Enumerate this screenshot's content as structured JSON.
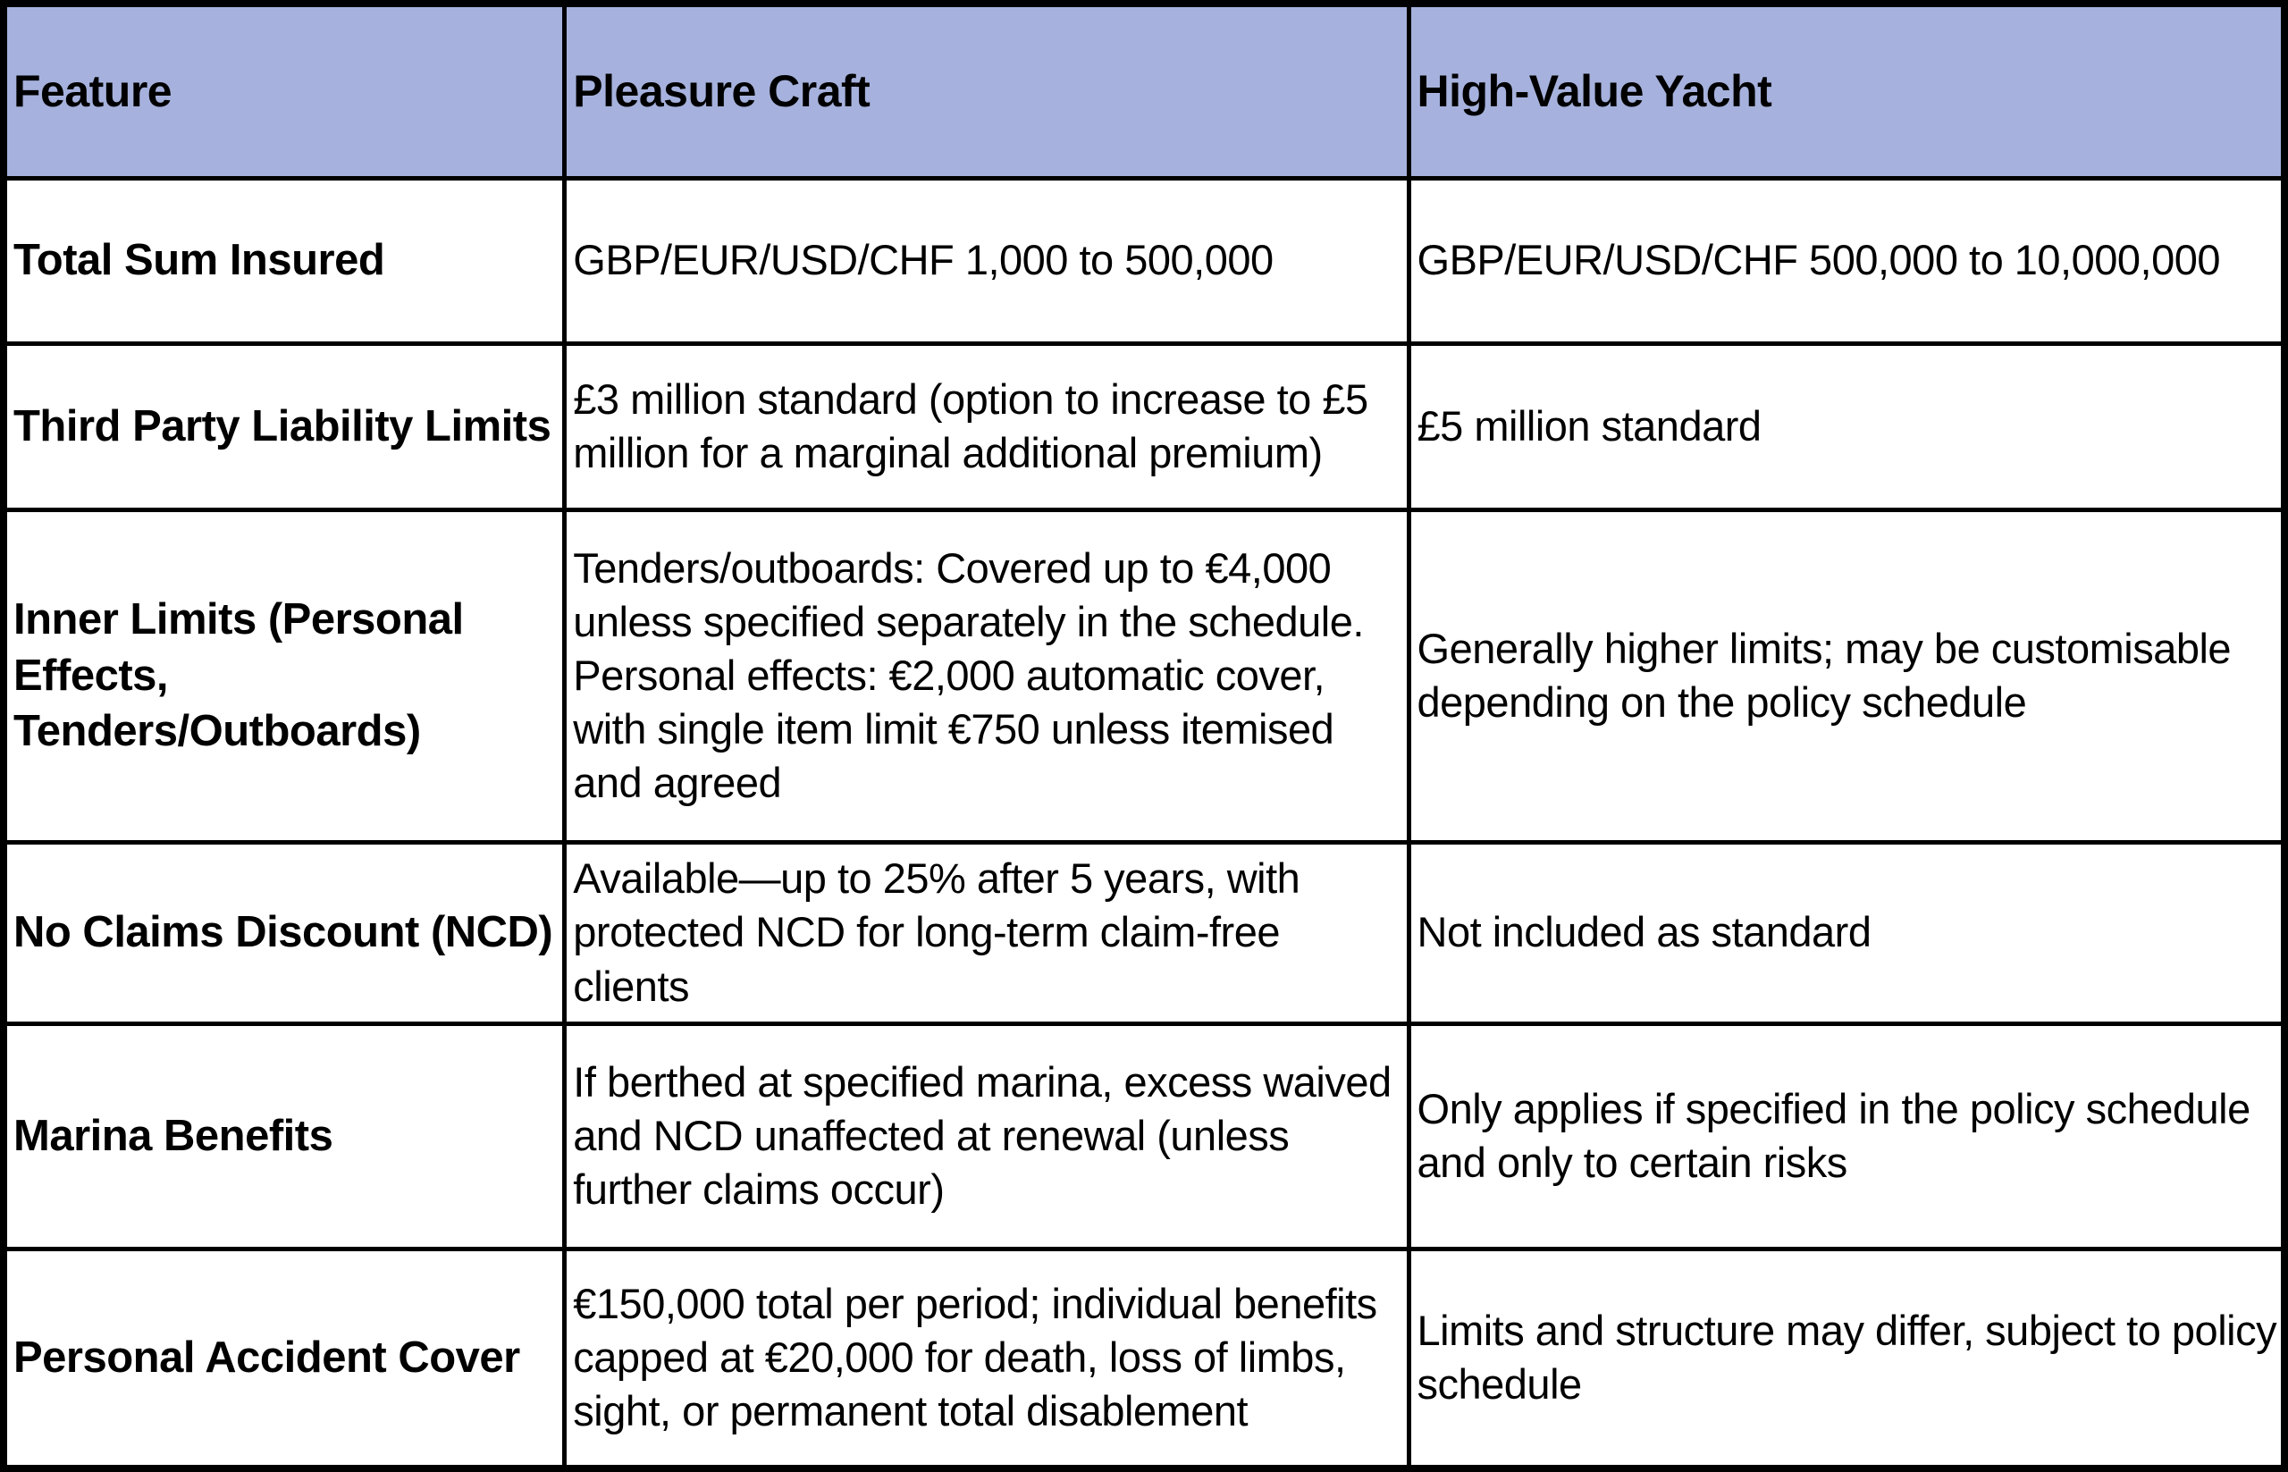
{
  "table": {
    "columns": [
      "Feature",
      "Pleasure Craft",
      "High-Value Yacht"
    ],
    "rows": [
      {
        "feature": "Total Sum Insured",
        "pleasure_craft": "GBP/EUR/USD/CHF 1,000 to 500,000",
        "high_value_yacht": "GBP/EUR/USD/CHF 500,000 to 10,000,000"
      },
      {
        "feature": "Third Party Liability Limits",
        "pleasure_craft": "£3 million standard (option to increase to £5 million for a marginal additional premium)",
        "high_value_yacht": "£5 million standard"
      },
      {
        "feature": "Inner Limits (Personal Effects, Tenders/Outboards)",
        "pleasure_craft": "Tenders/outboards: Covered up to €4,000 unless specified separately in the schedule. Personal effects: €2,000 automatic cover, with single item limit €750 unless itemised and agreed",
        "high_value_yacht": "Generally higher limits; may be customisable depending on the policy schedule"
      },
      {
        "feature": "No Claims Discount (NCD)",
        "pleasure_craft": "Available—up to 25% after 5 years, with protected NCD for long-term claim-free clients",
        "high_value_yacht": "Not included as standard"
      },
      {
        "feature": "Marina Benefits",
        "pleasure_craft": "If berthed at specified marina, excess waived and NCD unaffected at renewal (unless further claims occur)",
        "high_value_yacht": "Only applies if specified in the policy schedule and only to certain risks"
      },
      {
        "feature": "Personal Accident Cover",
        "pleasure_craft": "€150,000 total per period; individual benefits capped at €20,000 for death, loss of limbs, sight, or permanent total disablement",
        "high_value_yacht": "Limits and structure may differ, subject to policy schedule"
      }
    ]
  },
  "colors": {
    "header_bg": "#a6b2dd",
    "border": "#000000",
    "body_bg": "#ffffff",
    "text": "#000000"
  }
}
